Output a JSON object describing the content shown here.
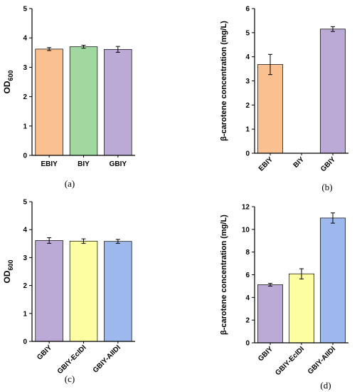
{
  "chart_data": [
    {
      "type": "bar",
      "panel_label": "(a)",
      "categories": [
        "EBIY",
        "BIY",
        "GBIY"
      ],
      "values": [
        3.62,
        3.7,
        3.61
      ],
      "errors": [
        0.05,
        0.05,
        0.1
      ],
      "colors": [
        "#fac090",
        "#a0d8a0",
        "#bba9d6"
      ],
      "ylabel_main": "OD",
      "ylabel_sub": "600",
      "ylim": [
        0,
        5
      ],
      "yticks": [
        "0",
        "1",
        "2",
        "3",
        "4",
        "5"
      ]
    },
    {
      "type": "bar",
      "panel_label": "(b)",
      "categories": [
        "EBIY",
        "BIY",
        "GBIY"
      ],
      "values": [
        3.68,
        0.0,
        5.15
      ],
      "errors": [
        0.42,
        0.0,
        0.1
      ],
      "colors": [
        "#fac090",
        "#a0d8a0",
        "#bba9d6"
      ],
      "ylabel": "β-carotene concentration (mg/L)",
      "ylim": [
        0,
        6
      ],
      "yticks": [
        "0",
        "1",
        "2",
        "3",
        "4",
        "5",
        "6"
      ]
    },
    {
      "type": "bar",
      "panel_label": "(c)",
      "categories": [
        "GBIY",
        "GBIY-EcIDI",
        "GBIY-AIIDI"
      ],
      "values": [
        3.61,
        3.59,
        3.58
      ],
      "errors": [
        0.1,
        0.08,
        0.07
      ],
      "colors": [
        "#bba9d6",
        "#fdfda2",
        "#9db8ec"
      ],
      "ylabel_main": "OD",
      "ylabel_sub": "600",
      "ylim": [
        0,
        5
      ],
      "yticks": [
        "0",
        "1",
        "2",
        "3",
        "4",
        "5"
      ]
    },
    {
      "type": "bar",
      "panel_label": "(d)",
      "categories": [
        "GBIY",
        "GBIY-EcIDI",
        "GBIY-AIIDI"
      ],
      "values": [
        5.12,
        6.08,
        11.0
      ],
      "errors": [
        0.12,
        0.45,
        0.45
      ],
      "colors": [
        "#bba9d6",
        "#fdfda2",
        "#9db8ec"
      ],
      "ylabel": "β-carotene concentration (mg/L)",
      "ylim": [
        0,
        12
      ],
      "yticks": [
        "0",
        "2",
        "4",
        "6",
        "8",
        "10",
        "12"
      ]
    }
  ]
}
